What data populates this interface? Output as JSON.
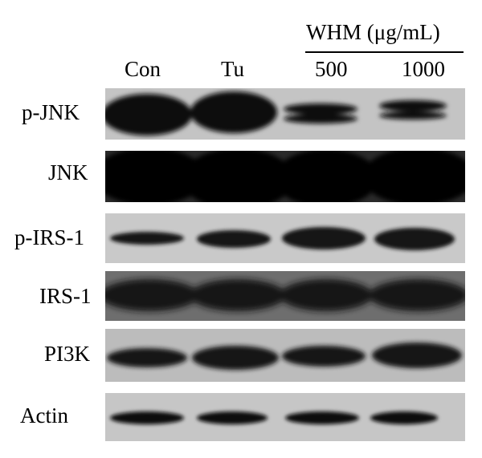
{
  "figure": {
    "treatment_header": "WHM (μg/mL)",
    "lanes": [
      "Con",
      "Tu",
      "500",
      "1000"
    ],
    "rows": [
      {
        "label": "p-JNK",
        "id": "p-jnk"
      },
      {
        "label": "JNK",
        "id": "jnk"
      },
      {
        "label": "p-IRS-1",
        "id": "p-irs-1"
      },
      {
        "label": "IRS-1",
        "id": "irs-1"
      },
      {
        "label": "PI3K",
        "id": "pi3k"
      },
      {
        "label": "Actin",
        "id": "actin"
      }
    ],
    "colors": {
      "background": "#ffffff",
      "panel_bg": "#bcbcbc",
      "band": "#0c0c0c"
    }
  }
}
